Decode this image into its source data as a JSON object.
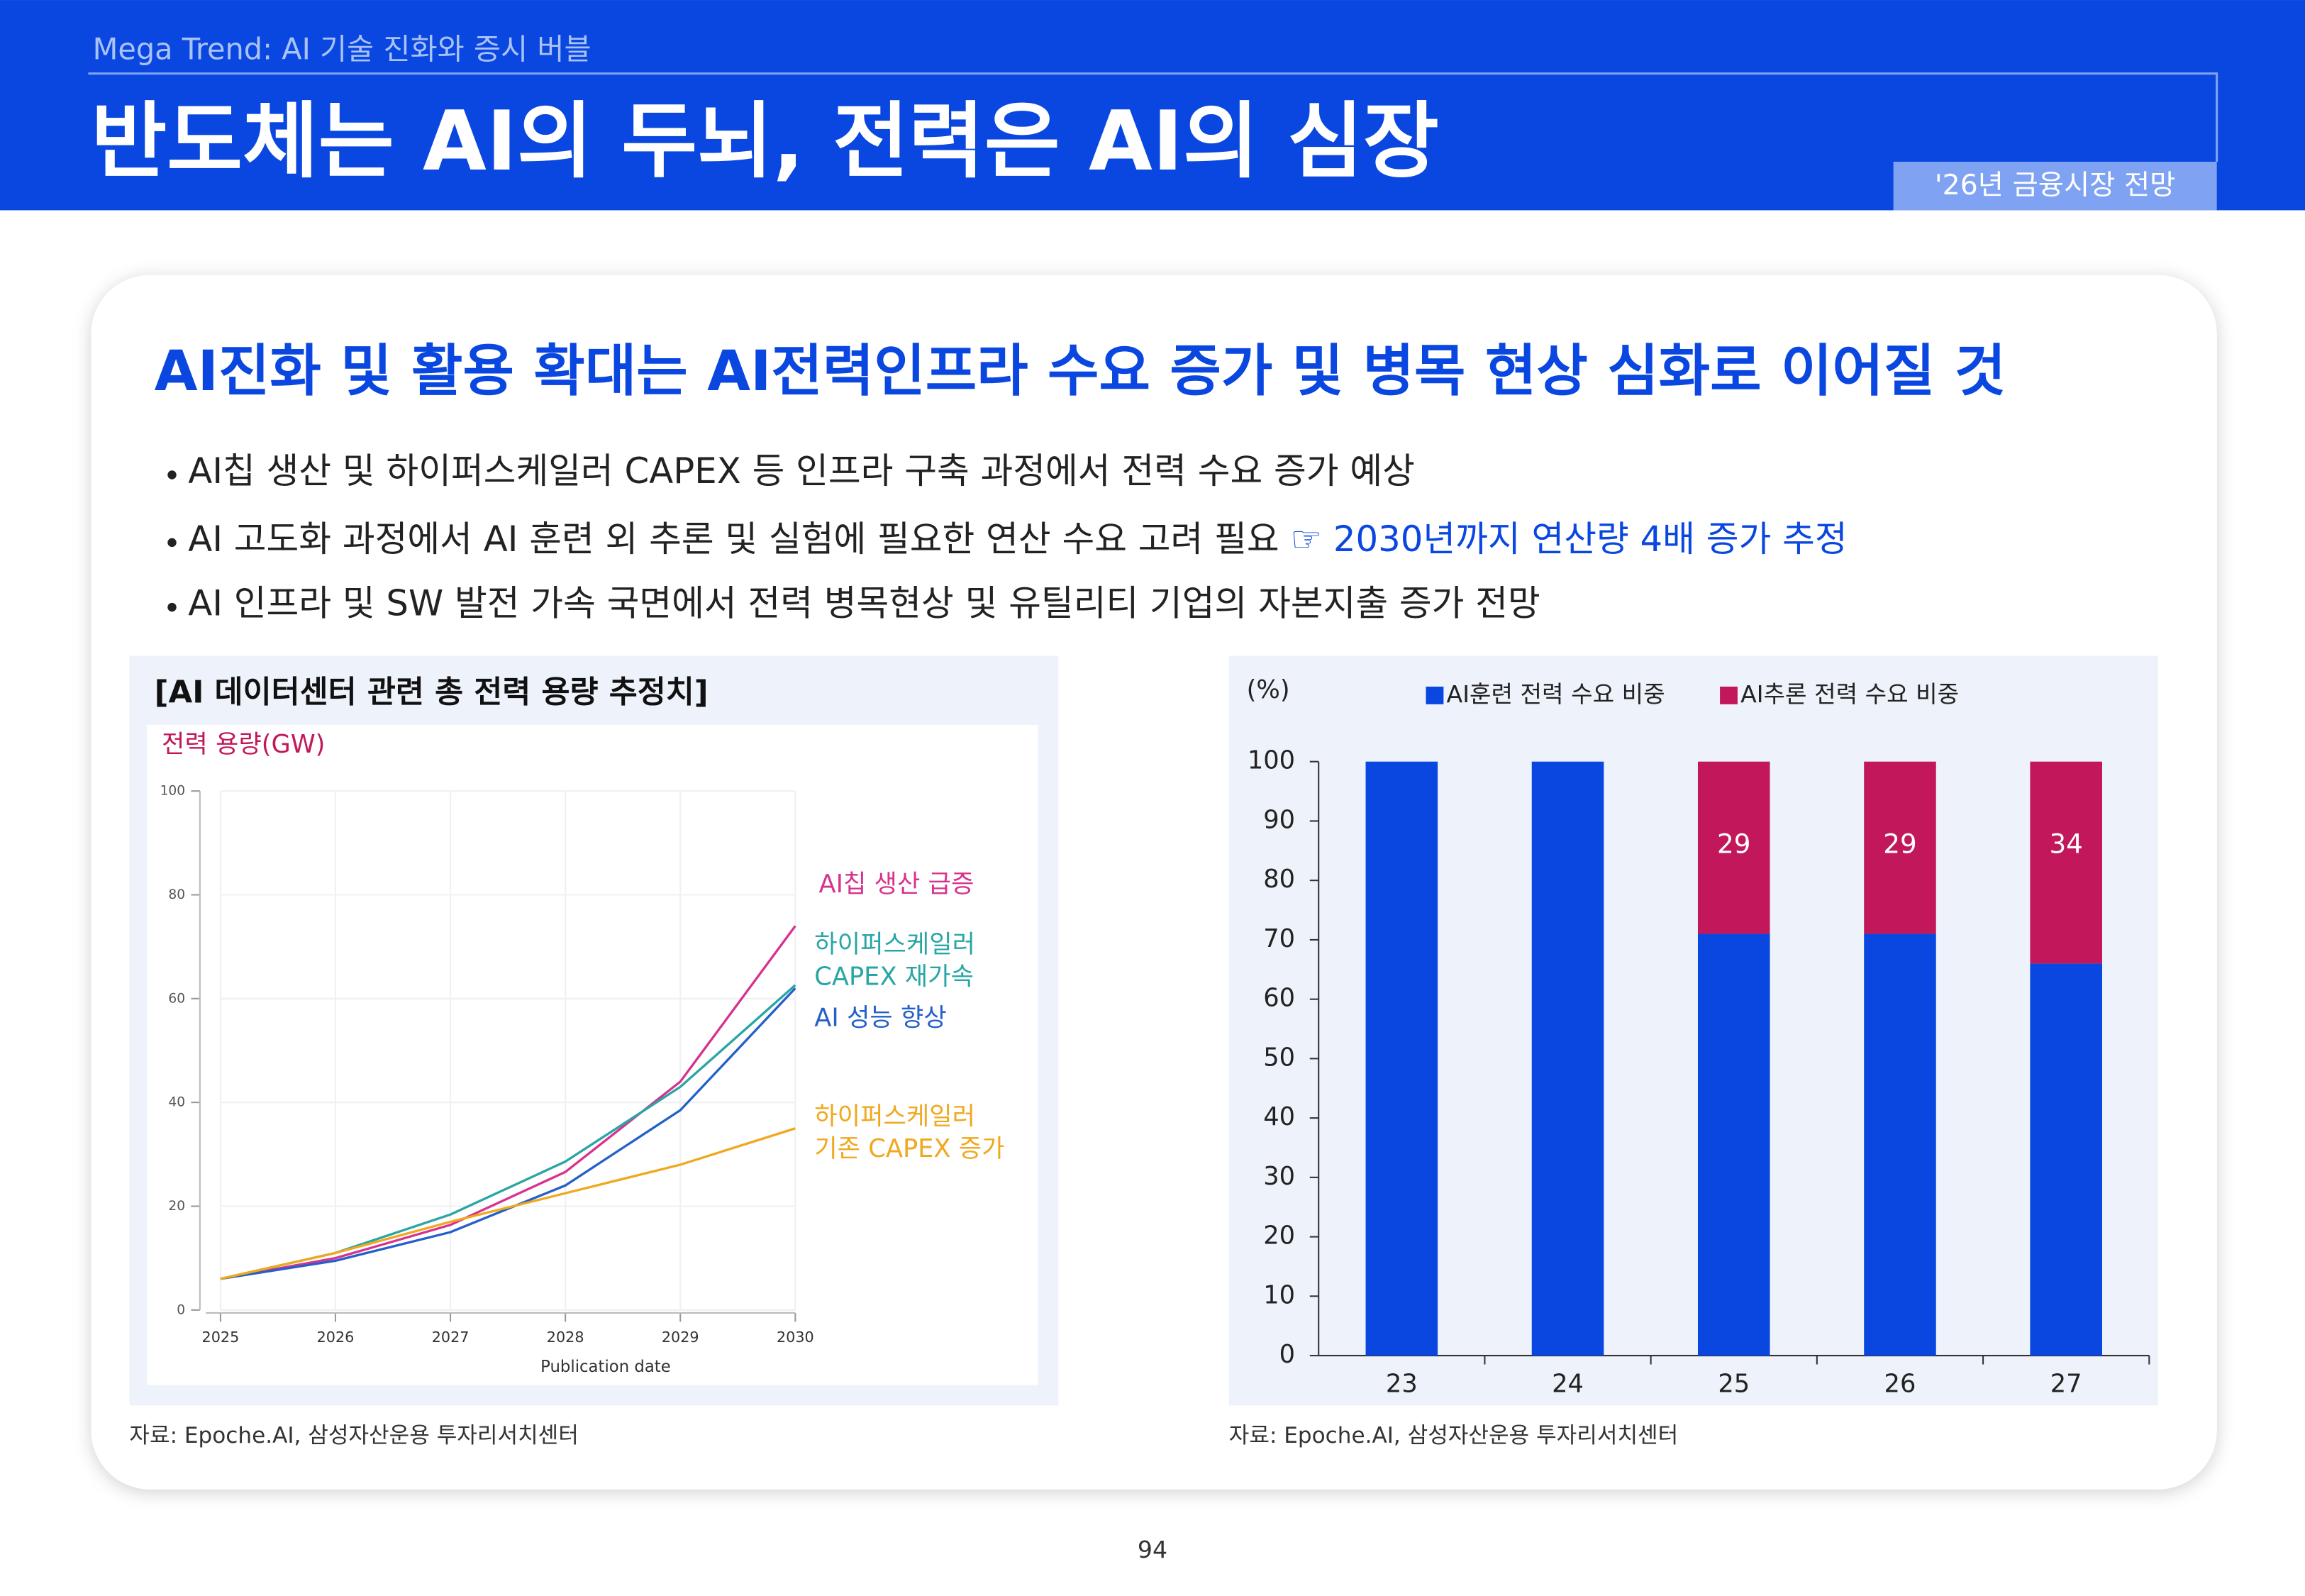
{
  "header": {
    "subtitle": "Mega Trend: AI 기술 진화와 증시 버블",
    "title": "반도체는 AI의 두뇌, 전력은 AI의 심장",
    "tag": "'26년 금융시장 전망"
  },
  "headline": "AI진화 및 활용 확대는 AI전력인프라 수요 증가 및 병목 현상 심화로 이어질 것",
  "bullets": [
    "AI칩 생산 및 하이퍼스케일러 CAPEX 등 인프라 구축 과정에서 전력 수요 증가 예상",
    "AI 고도화 과정에서 AI 훈련 외 추론 및 실험에 필요한 연산 수요 고려 필요",
    "AI 인프라 및 SW 발전 가속 국면에서 전력 병목현상 및 유틸리티 기업의 자본지출 증가 전망"
  ],
  "bullet_note": "☞ 2030년까지 연산량 4배 증가 추정",
  "chart_data": [
    {
      "type": "line",
      "title": "[AI 데이터센터 관련 총 전력 용량 추정치]",
      "ylabel": "전력 용량(GW)",
      "xlabel": "Publication date",
      "x": [
        2025,
        2026,
        2027,
        2028,
        2029,
        2030
      ],
      "xlim": [
        2025,
        2030
      ],
      "xticks": [
        2025,
        2026,
        2027,
        2028,
        2029,
        2030
      ],
      "ylim": [
        0,
        100
      ],
      "yticks": [
        0,
        20,
        40,
        60,
        80,
        100
      ],
      "grid": true,
      "series": [
        {
          "name": "AI칩 생산 급증",
          "color": "#d6338f",
          "values": [
            6,
            10,
            16.4,
            26.6,
            44,
            74
          ]
        },
        {
          "name": "하이퍼스케일러\nCAPEX 재가속",
          "color": "#2aa5a5",
          "values": [
            6,
            11,
            18.4,
            28.6,
            43,
            62.6
          ]
        },
        {
          "name": "AI 성능 향상",
          "color": "#2360c8",
          "values": [
            6,
            9.5,
            15,
            24,
            38.5,
            62
          ]
        },
        {
          "name": "하이퍼스케일러\n기존 CAPEX 증가",
          "color": "#f0a81e",
          "values": [
            6,
            11,
            17,
            22.5,
            28,
            35
          ]
        }
      ],
      "source": "자료: Epoche.AI, 삼성자산운용 투자리서치센터"
    },
    {
      "type": "bar",
      "stacked": true,
      "ylabel": "(%)",
      "categories": [
        "23",
        "24",
        "25",
        "26",
        "27"
      ],
      "ylim": [
        0,
        100
      ],
      "yticks": [
        0,
        10,
        20,
        30,
        40,
        50,
        60,
        70,
        80,
        90,
        100
      ],
      "series": [
        {
          "name": "AI훈련 전력 수요 비중",
          "color": "#0a47e0",
          "values": [
            100,
            100,
            71,
            71,
            66
          ]
        },
        {
          "name": "AI추론 전력 수요 비중",
          "color": "#c2185b",
          "values": [
            0,
            0,
            29,
            29,
            34
          ]
        }
      ],
      "source": "자료: Epoche.AI, 삼성자산운용 투자리서치센터"
    }
  ],
  "page_number": "94"
}
